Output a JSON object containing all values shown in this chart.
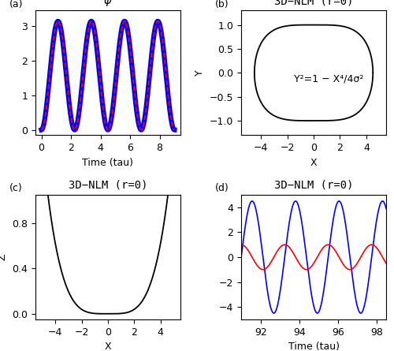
{
  "panel_a": {
    "title": "ϕ",
    "label": "(a)",
    "xlabel": "Time (tau)",
    "ylabel": "",
    "x_ticks": [
      0,
      2,
      4,
      6,
      8
    ],
    "y_ticks": [
      0.0,
      1.0,
      2.0,
      3.0
    ],
    "period": 2.25,
    "t_end": 9.0,
    "blue_color": "#0000FF",
    "red_color": "#FF0000"
  },
  "panel_b": {
    "title": "3D−NLM (r=0)",
    "label": "(b)",
    "xlabel": "X",
    "ylabel": "Y",
    "annotation": "Y²=1 − X⁴/4σ²",
    "sigma_val": 10.12,
    "x_ticks": [
      -4,
      -2,
      0,
      2,
      4
    ],
    "y_ticks": [
      -1.0,
      -0.5,
      0.0,
      0.5,
      1.0
    ],
    "xlim": [
      -5.5,
      5.5
    ],
    "ylim": [
      -1.3,
      1.3
    ],
    "line_color": "#000000"
  },
  "panel_c": {
    "title": "3D−NLM (r=0)",
    "label": "(c)",
    "xlabel": "X",
    "ylabel": "Z",
    "x_ticks": [
      -4,
      -2,
      0,
      2,
      4
    ],
    "y_ticks": [
      0.0,
      0.4,
      0.8
    ],
    "xlim": [
      -5.5,
      5.5
    ],
    "ylim": [
      -0.05,
      1.05
    ],
    "line_color": "#000000"
  },
  "panel_d": {
    "title": "3D−NLM (r=0)",
    "label": "(d)",
    "xlabel": "Time (tau)",
    "ylabel": "",
    "x_ticks": [
      92,
      94,
      96,
      98
    ],
    "y_ticks": [
      -4,
      -2,
      0,
      2,
      4
    ],
    "t_start": 91.0,
    "t_end": 98.5,
    "period": 2.25,
    "amp_x": 4.5,
    "amp_y": 1.0,
    "blue_color": "#0000FF",
    "red_color": "#FF0000"
  },
  "bg_color": "#FFFFFF",
  "font_size": 9,
  "title_font_size": 10
}
